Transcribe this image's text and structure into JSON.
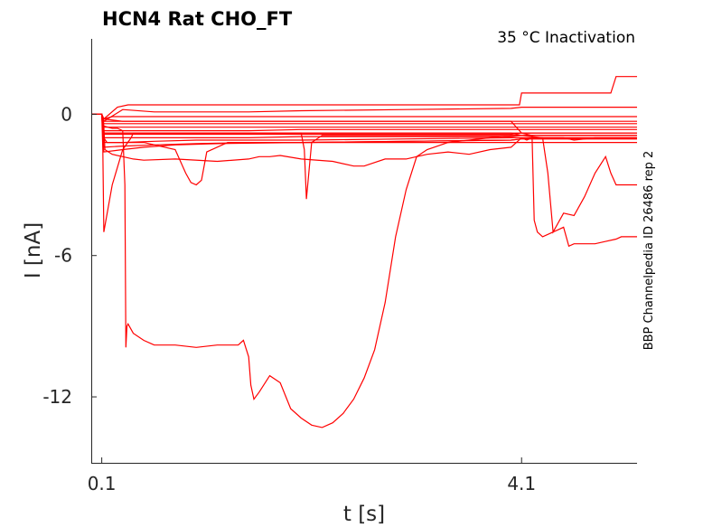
{
  "chart_data": {
    "type": "line",
    "title": "HCN4  Rat  CHO_FT",
    "annotation": "35 °C  Inactivation",
    "side_label": "BBP Channelpedia ID 26486 rep 2",
    "xlabel": "t [s]",
    "ylabel": "I [nA]",
    "xlim": [
      0.0,
      5.2
    ],
    "ylim": [
      -14.8,
      3.2
    ],
    "xticks": [
      0.1,
      4.1
    ],
    "xtick_labels": [
      "0.1",
      "4.1"
    ],
    "yticks": [
      0,
      -6,
      -12
    ],
    "ytick_labels": [
      "0",
      "-6",
      "-12"
    ],
    "line_color": "#ff0000",
    "series": [
      {
        "x": [
          0.0,
          0.1,
          0.12,
          0.2,
          0.4,
          1.0,
          1.5,
          2.0,
          3.0,
          4.0,
          4.1,
          4.5,
          5.0,
          5.2
        ],
        "y": [
          0.0,
          0.0,
          -0.2,
          -0.1,
          -0.1,
          -0.1,
          -0.1,
          -0.1,
          -0.1,
          -0.1,
          -0.1,
          -0.1,
          -0.1,
          -0.1
        ]
      },
      {
        "x": [
          0.0,
          0.1,
          0.12,
          0.2,
          0.4,
          1.0,
          1.5,
          2.0,
          3.0,
          4.0,
          4.1,
          4.5,
          5.0,
          5.2
        ],
        "y": [
          0.0,
          0.0,
          -0.3,
          -0.3,
          -0.3,
          -0.3,
          -0.3,
          -0.3,
          -0.3,
          -0.3,
          -0.3,
          -0.3,
          -0.3,
          -0.3
        ]
      },
      {
        "x": [
          0.0,
          0.1,
          0.12,
          0.3,
          0.6,
          1.0,
          1.5,
          2.0,
          3.0,
          4.0,
          4.1,
          4.5,
          5.0,
          5.2
        ],
        "y": [
          0.0,
          0.0,
          -0.4,
          -0.4,
          -0.4,
          -0.4,
          -0.4,
          -0.4,
          -0.4,
          -0.4,
          -0.4,
          -0.4,
          -0.4,
          -0.4
        ]
      },
      {
        "x": [
          0.0,
          0.1,
          0.12,
          0.3,
          0.6,
          1.0,
          1.5,
          2.0,
          3.0,
          4.0,
          4.1,
          4.5,
          5.0,
          5.2
        ],
        "y": [
          0.0,
          0.0,
          -0.55,
          -0.55,
          -0.55,
          -0.55,
          -0.55,
          -0.55,
          -0.55,
          -0.55,
          -0.55,
          -0.55,
          -0.55,
          -0.55
        ]
      },
      {
        "x": [
          0.0,
          0.1,
          0.12,
          0.3,
          0.6,
          1.0,
          1.5,
          2.0,
          3.0,
          4.0,
          4.1,
          4.5,
          5.0,
          5.2
        ],
        "y": [
          0.0,
          0.0,
          -0.7,
          -0.7,
          -0.7,
          -0.7,
          -0.7,
          -0.65,
          -0.65,
          -0.65,
          -0.65,
          -0.65,
          -0.65,
          -0.65
        ]
      },
      {
        "x": [
          0.0,
          0.1,
          0.12,
          0.3,
          0.6,
          1.0,
          1.5,
          2.0,
          3.0,
          4.0,
          4.1,
          4.5,
          5.0,
          5.2
        ],
        "y": [
          0.0,
          0.0,
          -0.85,
          -0.85,
          -0.85,
          -0.85,
          -0.85,
          -0.85,
          -0.85,
          -0.85,
          -0.8,
          -0.8,
          -0.8,
          -0.8
        ]
      },
      {
        "x": [
          0.0,
          0.1,
          0.12,
          0.3,
          0.6,
          1.0,
          1.5,
          2.0,
          3.0,
          4.0,
          4.1,
          4.5,
          5.0,
          5.2
        ],
        "y": [
          0.0,
          0.0,
          -1.0,
          -1.0,
          -1.0,
          -1.0,
          -1.0,
          -0.95,
          -0.95,
          -0.95,
          -0.9,
          -0.9,
          -0.9,
          -0.9
        ]
      },
      {
        "x": [
          0.0,
          0.1,
          0.12,
          0.3,
          0.6,
          1.0,
          1.5,
          2.0,
          3.0,
          4.0,
          4.1,
          4.5,
          5.0,
          5.2
        ],
        "y": [
          0.0,
          0.0,
          -1.2,
          -1.2,
          -1.15,
          -1.1,
          -1.1,
          -1.1,
          -1.05,
          -1.0,
          -1.0,
          -1.0,
          -1.0,
          -1.0
        ]
      },
      {
        "x": [
          0.0,
          0.1,
          0.12,
          0.3,
          0.6,
          1.0,
          1.5,
          2.0,
          3.0,
          4.0,
          4.1,
          4.5,
          5.0,
          5.2
        ],
        "y": [
          0.0,
          0.0,
          -1.4,
          -1.35,
          -1.3,
          -1.25,
          -1.2,
          -1.2,
          -1.15,
          -1.1,
          -1.05,
          -1.05,
          -1.05,
          -1.05
        ]
      },
      {
        "x": [
          0.0,
          0.1,
          0.12,
          0.3,
          0.5,
          0.8,
          1.2,
          2.0,
          3.0,
          4.0,
          4.1,
          4.5,
          5.0,
          5.2
        ],
        "y": [
          0.0,
          0.0,
          -1.6,
          -1.5,
          -1.4,
          -1.3,
          -1.25,
          -1.2,
          -1.15,
          -1.1,
          -1.05,
          -1.05,
          -1.05,
          -1.05
        ]
      },
      {
        "x": [
          0.0,
          0.1,
          0.12,
          0.3,
          0.6,
          1.0,
          1.5,
          2.0,
          3.0,
          4.0,
          4.1,
          4.5,
          5.0,
          5.2
        ],
        "y": [
          0.0,
          0.0,
          -0.3,
          0.2,
          0.1,
          0.1,
          0.1,
          0.15,
          0.2,
          0.25,
          0.3,
          0.3,
          0.3,
          0.3
        ]
      },
      {
        "x": [
          0.0,
          0.1,
          0.12,
          0.25,
          0.35,
          0.5,
          1.0,
          1.5,
          2.0,
          2.5,
          3.0,
          3.5,
          4.0,
          4.08,
          4.1,
          4.5,
          4.95,
          5.0,
          5.2
        ],
        "y": [
          0.0,
          0.0,
          -0.2,
          0.3,
          0.4,
          0.4,
          0.4,
          0.4,
          0.4,
          0.4,
          0.4,
          0.4,
          0.4,
          0.4,
          0.9,
          0.9,
          0.9,
          1.6,
          1.6
        ]
      },
      {
        "x": [
          0.0,
          0.1,
          0.12,
          0.3,
          0.6,
          1.0,
          1.5,
          2.0,
          3.0,
          4.0,
          4.1,
          4.5,
          5.0,
          5.2
        ],
        "y": [
          0.0,
          0.0,
          -0.2,
          -0.3,
          -0.3,
          -0.3,
          -0.3,
          -0.3,
          -0.3,
          -0.3,
          -0.8,
          -0.8,
          -0.8,
          -0.8
        ]
      },
      {
        "x": [
          0.0,
          0.1,
          0.12,
          0.13,
          0.2,
          0.3,
          0.4,
          0.5,
          0.8,
          1.2,
          1.5,
          1.6,
          1.7,
          1.8,
          2.0,
          2.3,
          2.5,
          2.6,
          2.8,
          3.0,
          3.1,
          3.2,
          3.4,
          3.6,
          3.8,
          4.0,
          4.1,
          4.15,
          4.2,
          4.4,
          4.5,
          4.6,
          4.8,
          5.0,
          5.2
        ],
        "y": [
          0.0,
          0.0,
          -0.5,
          -1.5,
          -1.7,
          -1.8,
          -1.9,
          -1.95,
          -1.9,
          -2.0,
          -1.9,
          -1.8,
          -1.8,
          -1.75,
          -1.9,
          -2.0,
          -2.2,
          -2.2,
          -1.9,
          -1.9,
          -1.8,
          -1.7,
          -1.6,
          -1.7,
          -1.5,
          -1.4,
          -1.0,
          -1.1,
          -1.0,
          -1.0,
          -1.0,
          -1.1,
          -1.0,
          -1.0,
          -1.0
        ]
      },
      {
        "x": [
          0.0,
          0.1,
          0.12,
          0.15,
          0.2,
          0.25,
          0.3,
          0.35,
          0.38,
          0.4,
          0.5,
          0.8,
          0.9,
          0.95,
          1.0,
          1.05,
          1.1,
          1.3,
          1.5,
          2.0,
          2.5,
          3.0,
          3.5,
          4.0,
          4.1,
          4.5,
          5.0,
          5.2
        ],
        "y": [
          0.0,
          0.0,
          -1.0,
          -1.2,
          -1.2,
          -1.2,
          -1.2,
          -1.2,
          -1.2,
          -1.2,
          -1.2,
          -1.5,
          -2.5,
          -2.9,
          -3.0,
          -2.8,
          -1.6,
          -1.2,
          -1.2,
          -1.2,
          -1.2,
          -1.2,
          -1.2,
          -1.2,
          -1.2,
          -1.2,
          -1.2,
          -1.2
        ]
      },
      {
        "x": [
          0.0,
          0.1,
          0.11,
          0.12,
          0.2,
          0.3,
          0.38,
          0.4,
          0.5,
          1.0,
          1.5,
          2.0,
          2.03,
          2.05,
          2.1,
          2.2,
          3.0,
          4.0,
          4.1,
          4.5,
          5.0,
          5.2
        ],
        "y": [
          0.0,
          0.0,
          -1.5,
          -5.0,
          -3.0,
          -1.5,
          -1.0,
          -0.8,
          -0.8,
          -0.8,
          -0.8,
          -0.8,
          -1.5,
          -3.6,
          -1.2,
          -0.9,
          -0.9,
          -0.9,
          -0.9,
          -0.9,
          -0.9,
          -0.9
        ]
      },
      {
        "x": [
          0.0,
          0.1,
          0.12,
          0.2,
          0.25,
          0.3,
          0.32,
          0.33,
          0.34,
          0.35,
          0.4,
          0.5,
          0.6,
          0.8,
          1.0,
          1.2,
          1.4,
          1.45,
          1.5,
          1.52,
          1.55,
          1.6,
          1.7,
          1.8,
          1.9,
          2.0,
          2.1,
          2.2,
          2.3,
          2.4,
          2.5,
          2.6,
          2.7,
          2.8,
          2.9,
          3.0,
          3.1,
          3.2,
          3.4,
          3.6,
          3.8,
          4.0,
          4.1,
          4.2,
          4.3,
          4.35,
          4.4,
          4.5,
          4.6,
          4.7,
          4.8,
          4.9,
          5.0,
          5.2
        ],
        "y": [
          0.0,
          0.0,
          -0.5,
          -0.6,
          -0.6,
          -0.7,
          -3.0,
          -9.9,
          -9.0,
          -8.9,
          -9.3,
          -9.6,
          -9.8,
          -9.8,
          -9.9,
          -9.8,
          -9.8,
          -9.6,
          -10.3,
          -11.5,
          -12.1,
          -11.8,
          -11.1,
          -11.4,
          -12.5,
          -12.9,
          -13.2,
          -13.3,
          -13.1,
          -12.7,
          -12.1,
          -11.2,
          -10.0,
          -8.0,
          -5.2,
          -3.2,
          -1.8,
          -1.5,
          -1.2,
          -1.1,
          -1.0,
          -0.9,
          -0.9,
          -0.9,
          -0.9,
          -0.9,
          -0.9,
          -0.9,
          -0.9,
          -0.9,
          -0.9,
          -0.9,
          -0.9,
          -0.9
        ]
      },
      {
        "x": [
          0.0,
          0.1,
          0.12,
          0.3,
          1.0,
          2.0,
          3.0,
          4.0,
          4.1,
          4.2,
          4.22,
          4.25,
          4.3,
          4.4,
          4.5,
          4.55,
          4.6,
          4.7,
          4.8,
          4.9,
          5.0,
          5.05,
          5.2
        ],
        "y": [
          0.0,
          0.0,
          -0.8,
          -0.8,
          -0.8,
          -0.8,
          -0.8,
          -0.8,
          -0.8,
          -0.9,
          -4.5,
          -5.0,
          -5.2,
          -5.0,
          -4.8,
          -5.6,
          -5.5,
          -5.5,
          -5.5,
          -5.4,
          -5.3,
          -5.2,
          -5.2
        ]
      },
      {
        "x": [
          0.0,
          0.1,
          0.12,
          0.3,
          1.0,
          2.0,
          3.0,
          4.0,
          4.1,
          4.3,
          4.35,
          4.4,
          4.5,
          4.6,
          4.7,
          4.8,
          4.9,
          4.95,
          5.0,
          5.2
        ],
        "y": [
          0.0,
          0.0,
          -0.8,
          -0.8,
          -0.8,
          -0.8,
          -0.8,
          -0.8,
          -0.9,
          -1.0,
          -2.5,
          -5.0,
          -4.2,
          -4.3,
          -3.5,
          -2.5,
          -1.8,
          -2.5,
          -3.0,
          -3.0
        ]
      }
    ]
  }
}
